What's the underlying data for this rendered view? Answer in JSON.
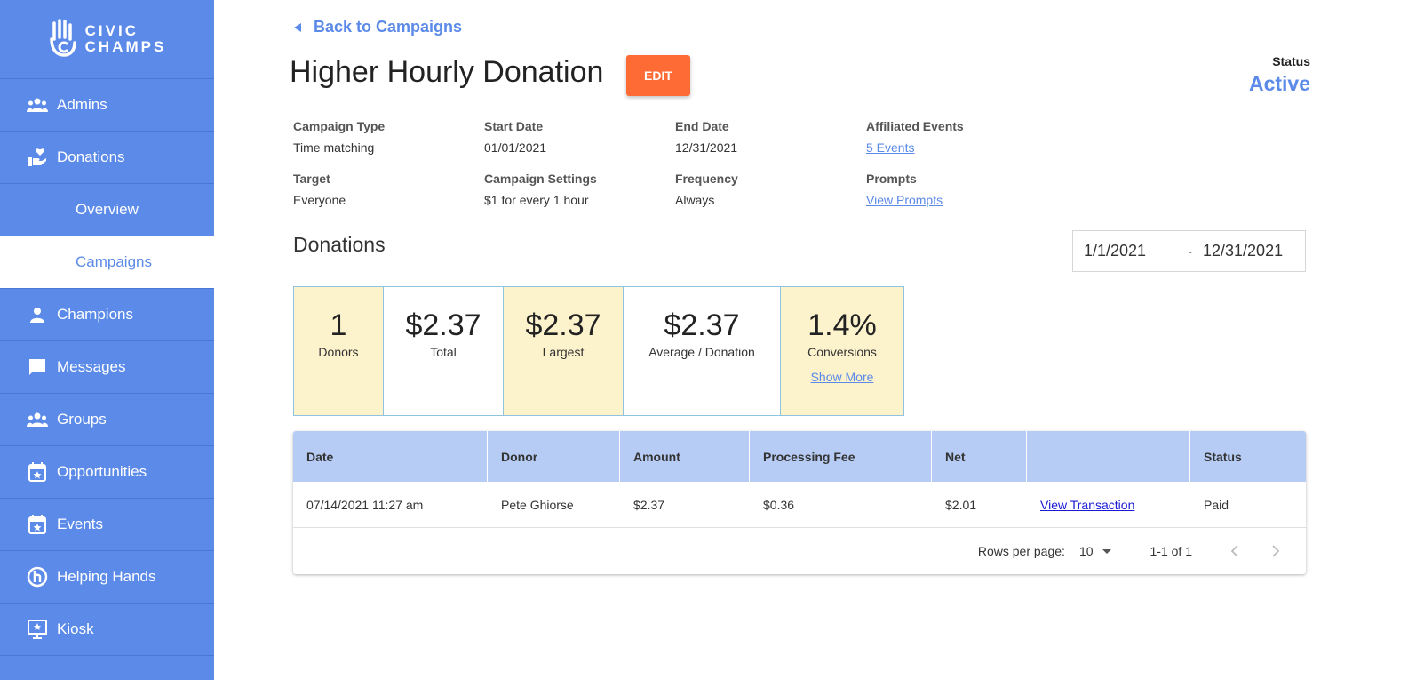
{
  "app": {
    "logo_line1": "CIVIC",
    "logo_line2": "CHAMPS"
  },
  "sidebar": {
    "items": [
      {
        "label": "Admins",
        "icon": "people-icon"
      },
      {
        "label": "Donations",
        "icon": "donation-icon"
      },
      {
        "label": "Overview"
      },
      {
        "label": "Campaigns",
        "active": true
      },
      {
        "label": "Champions",
        "icon": "person-icon"
      },
      {
        "label": "Messages",
        "icon": "message-icon"
      },
      {
        "label": "Groups",
        "icon": "groups-icon"
      },
      {
        "label": "Opportunities",
        "icon": "calendar-star-icon"
      },
      {
        "label": "Events",
        "icon": "calendar-star-icon"
      },
      {
        "label": "Helping Hands",
        "icon": "helping-hands-icon"
      },
      {
        "label": "Kiosk",
        "icon": "kiosk-icon"
      }
    ]
  },
  "header": {
    "back_label": "Back to Campaigns",
    "title": "Higher Hourly Donation",
    "edit_label": "EDIT",
    "status_label": "Status",
    "status_value": "Active"
  },
  "details": {
    "campaign_type": {
      "label": "Campaign Type",
      "value": "Time matching"
    },
    "start_date": {
      "label": "Start Date",
      "value": "01/01/2021"
    },
    "end_date": {
      "label": "End Date",
      "value": "12/31/2021"
    },
    "affiliated_events": {
      "label": "Affiliated Events",
      "value": "5 Events"
    },
    "target": {
      "label": "Target",
      "value": "Everyone"
    },
    "campaign_settings": {
      "label": "Campaign Settings",
      "value": "$1 for every 1 hour"
    },
    "frequency": {
      "label": "Frequency",
      "value": "Always"
    },
    "prompts": {
      "label": "Prompts",
      "value": "View Prompts"
    }
  },
  "donations": {
    "heading": "Donations",
    "date_from": "1/1/2021",
    "date_sep": "-",
    "date_to": "12/31/2021",
    "stats": {
      "donors": {
        "value": "1",
        "label": "Donors"
      },
      "total": {
        "value": "$2.37",
        "label": "Total"
      },
      "largest": {
        "value": "$2.37",
        "label": "Largest"
      },
      "average": {
        "value": "$2.37",
        "label": "Average / Donation"
      },
      "conversions": {
        "value": "1.4%",
        "label": "Conversions",
        "more": "Show More"
      }
    }
  },
  "table": {
    "headers": [
      "Date",
      "Donor",
      "Amount",
      "Processing Fee",
      "Net",
      "",
      "Status"
    ],
    "rows": [
      [
        "07/14/2021 11:27 am",
        "Pete Ghiorse",
        "$2.37",
        "$0.36",
        "$2.01",
        "View Transaction",
        "Paid"
      ]
    ],
    "footer": {
      "rows_per_page_label": "Rows per page:",
      "rows_per_page": "10",
      "range": "1-1 of 1"
    }
  },
  "colors": {
    "sidebar": "#5b8ae8",
    "accent": "#5b8ae8",
    "edit_button": "#ff6b35",
    "stat_highlight": "#fcf2cc",
    "table_header": "#b6ccf5"
  }
}
